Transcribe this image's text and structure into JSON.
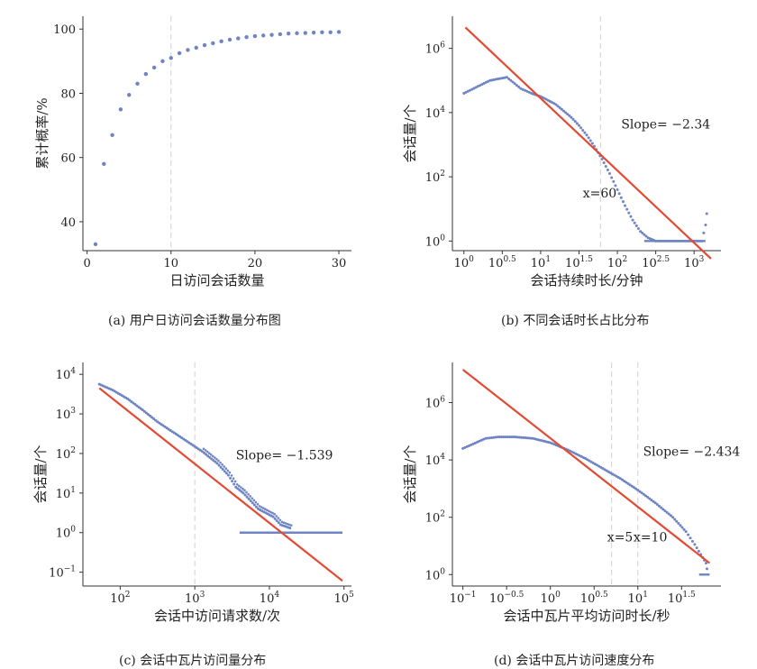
{
  "chart_data": [
    {
      "type": "scatter",
      "caption": "(a) 用户日访问会话数量分布图",
      "xlabel": "日访问会话数量",
      "ylabel": "累计概率/%",
      "xlim": [
        -0.5,
        31.5
      ],
      "ylim": [
        31,
        104
      ],
      "xticks": [
        {
          "v": 0,
          "label": "0"
        },
        {
          "v": 10,
          "label": "10"
        },
        {
          "v": 20,
          "label": "20"
        },
        {
          "v": 30,
          "label": "30"
        }
      ],
      "yticks": [
        {
          "v": 40,
          "label": "40"
        },
        {
          "v": 60,
          "label": "60"
        },
        {
          "v": 80,
          "label": "80"
        },
        {
          "v": 100,
          "label": "100"
        }
      ],
      "vlines": [
        10
      ],
      "x": [
        1,
        2,
        3,
        4,
        5,
        6,
        7,
        8,
        9,
        10,
        11,
        12,
        13,
        14,
        15,
        16,
        17,
        18,
        19,
        20,
        21,
        22,
        23,
        24,
        25,
        26,
        27,
        28,
        29,
        30
      ],
      "y": [
        33,
        58,
        67,
        75,
        79.5,
        83,
        86,
        88,
        90,
        91,
        92.5,
        93.5,
        94.2,
        95,
        95.6,
        96.2,
        96.7,
        97.1,
        97.5,
        97.8,
        98,
        98.2,
        98.4,
        98.6,
        98.7,
        98.8,
        98.9,
        99,
        99,
        99.1
      ]
    },
    {
      "type": "scatter",
      "caption": "(b) 不同会话时长占比分布",
      "xlabel": "会话持续时长/分钟",
      "ylabel": "会话量/个",
      "log": true,
      "xlim": [
        -0.15,
        3.35
      ],
      "ylim": [
        -0.3,
        7.0
      ],
      "xticks": [
        {
          "v": 0,
          "base": "10",
          "exp": "0"
        },
        {
          "v": 0.5,
          "base": "10",
          "exp": "0.5"
        },
        {
          "v": 1,
          "base": "10",
          "exp": "1"
        },
        {
          "v": 1.5,
          "base": "10",
          "exp": "1.5"
        },
        {
          "v": 2,
          "base": "10",
          "exp": "2"
        },
        {
          "v": 2.5,
          "base": "10",
          "exp": "2.5"
        },
        {
          "v": 3,
          "base": "10",
          "exp": "3"
        }
      ],
      "yticks": [
        {
          "v": 0,
          "base": "10",
          "exp": "0"
        },
        {
          "v": 2,
          "base": "10",
          "exp": "2"
        },
        {
          "v": 4,
          "base": "10",
          "exp": "4"
        },
        {
          "v": 6,
          "base": "10",
          "exp": "6"
        }
      ],
      "vlines": [
        1.78
      ],
      "fit": {
        "x1": 0.02,
        "y1": 6.65,
        "x2": 3.22,
        "y2": -0.55
      },
      "annotations": [
        {
          "text": "Slope= −2.34",
          "x": 2.05,
          "y": 3.5
        },
        {
          "text": "x=60",
          "x": 1.55,
          "y": 1.35
        }
      ],
      "points": [
        [
          0,
          4.6
        ],
        [
          0.34,
          5.0
        ],
        [
          0.56,
          5.1
        ],
        [
          0.74,
          4.75
        ],
        [
          0.88,
          4.6
        ],
        [
          1.0,
          4.5
        ],
        [
          1.1,
          4.38
        ],
        [
          1.2,
          4.25
        ],
        [
          1.3,
          4.05
        ],
        [
          1.4,
          3.85
        ],
        [
          1.5,
          3.6
        ],
        [
          1.6,
          3.3
        ],
        [
          1.7,
          2.95
        ],
        [
          1.8,
          2.55
        ],
        [
          1.9,
          2.1
        ],
        [
          2.0,
          1.6
        ],
        [
          2.1,
          1.1
        ],
        [
          2.2,
          0.65
        ],
        [
          2.3,
          0.3
        ],
        [
          2.4,
          0.1
        ],
        [
          2.5,
          0.0
        ],
        [
          2.6,
          0.0
        ],
        [
          2.8,
          0.0
        ],
        [
          3.0,
          0.0
        ],
        [
          3.1,
          0.0
        ],
        [
          3.15,
          0.5
        ],
        [
          3.18,
          1.2
        ]
      ],
      "floor": {
        "y": 0,
        "x0": 2.35,
        "x1": 3.15
      }
    },
    {
      "type": "scatter",
      "caption": "(c) 会话中瓦片访问量分布",
      "xlabel": "会话中访问请求数/次",
      "ylabel": "会话量/个",
      "log": true,
      "xlim": [
        1.5,
        5.1
      ],
      "ylim": [
        -1.35,
        4.3
      ],
      "xticks": [
        {
          "v": 2,
          "base": "10",
          "exp": "2"
        },
        {
          "v": 3,
          "base": "10",
          "exp": "3"
        },
        {
          "v": 4,
          "base": "10",
          "exp": "4"
        },
        {
          "v": 5,
          "base": "10",
          "exp": "5"
        }
      ],
      "yticks": [
        {
          "v": -1,
          "base": "10",
          "exp": "−1"
        },
        {
          "v": 0,
          "base": "10",
          "exp": "0"
        },
        {
          "v": 1,
          "base": "10",
          "exp": "1"
        },
        {
          "v": 2,
          "base": "10",
          "exp": "2"
        },
        {
          "v": 3,
          "base": "10",
          "exp": "3"
        },
        {
          "v": 4,
          "base": "10",
          "exp": "4"
        }
      ],
      "vlines": [
        3.0
      ],
      "fit": {
        "x1": 1.72,
        "y1": 3.65,
        "x2": 4.98,
        "y2": -1.22
      },
      "annotations": [
        {
          "text": "Slope= −1.539",
          "x": 3.55,
          "y": 1.85
        }
      ],
      "points": [
        [
          1.72,
          3.75
        ],
        [
          1.9,
          3.6
        ],
        [
          2.1,
          3.38
        ],
        [
          2.3,
          3.1
        ],
        [
          2.5,
          2.8
        ],
        [
          2.7,
          2.55
        ],
        [
          2.9,
          2.3
        ],
        [
          3.1,
          2.05
        ],
        [
          3.3,
          1.75
        ],
        [
          3.45,
          1.45
        ],
        [
          3.55,
          1.15
        ],
        [
          3.65,
          1.0
        ],
        [
          3.75,
          0.8
        ],
        [
          3.85,
          0.6
        ],
        [
          3.95,
          0.5
        ],
        [
          4.05,
          0.4
        ],
        [
          4.15,
          0.2
        ],
        [
          4.3,
          0.1
        ]
      ],
      "floor": {
        "y": 0,
        "x0": 3.6,
        "x1": 4.98
      }
    },
    {
      "type": "scatter",
      "caption": "(d) 会话中瓦片访问速度分布",
      "xlabel": "会话中瓦片平均访问时长/秒",
      "ylabel": "会话量/个",
      "log": true,
      "xlim": [
        -1.12,
        1.95
      ],
      "ylim": [
        -0.4,
        7.4
      ],
      "xticks": [
        {
          "v": -1,
          "base": "10",
          "exp": "−1"
        },
        {
          "v": -0.5,
          "base": "10",
          "exp": "−0.5"
        },
        {
          "v": 0,
          "base": "10",
          "exp": "0"
        },
        {
          "v": 0.5,
          "base": "10",
          "exp": "0.5"
        },
        {
          "v": 1,
          "base": "10",
          "exp": "1"
        },
        {
          "v": 1.5,
          "base": "10",
          "exp": "1.5"
        }
      ],
      "yticks": [
        {
          "v": 0,
          "base": "10",
          "exp": "0"
        },
        {
          "v": 2,
          "base": "10",
          "exp": "2"
        },
        {
          "v": 4,
          "base": "10",
          "exp": "4"
        },
        {
          "v": 6,
          "base": "10",
          "exp": "6"
        }
      ],
      "vlines": [
        0.7,
        1.0
      ],
      "fit": {
        "x1": -1.0,
        "y1": 7.15,
        "x2": 1.82,
        "y2": 0.4
      },
      "annotations": [
        {
          "text": "Slope= −2.434",
          "x": 1.06,
          "y": 4.15
        },
        {
          "text": "x=5",
          "x": 0.65,
          "y": 1.15
        },
        {
          "text": "x=10",
          "x": 0.95,
          "y": 1.15
        }
      ],
      "points": [
        [
          -1.0,
          4.4
        ],
        [
          -0.74,
          4.75
        ],
        [
          -0.6,
          4.8
        ],
        [
          -0.4,
          4.8
        ],
        [
          -0.2,
          4.75
        ],
        [
          0.0,
          4.6
        ],
        [
          0.2,
          4.35
        ],
        [
          0.4,
          4.05
        ],
        [
          0.6,
          3.7
        ],
        [
          0.8,
          3.35
        ],
        [
          1.0,
          2.95
        ],
        [
          1.2,
          2.5
        ],
        [
          1.4,
          2.0
        ],
        [
          1.55,
          1.5
        ],
        [
          1.65,
          1.05
        ],
        [
          1.72,
          0.7
        ],
        [
          1.78,
          0.4
        ],
        [
          1.8,
          0.0
        ]
      ],
      "floor": {
        "y": 0,
        "x0": 1.7,
        "x1": 1.82
      }
    }
  ]
}
